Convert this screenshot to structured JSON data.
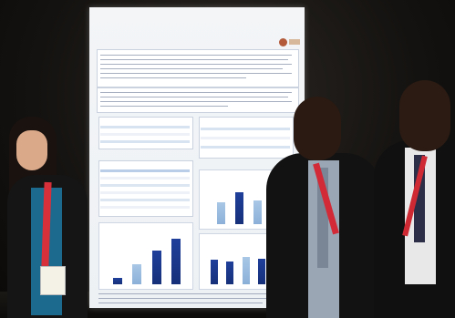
{
  "photo": {
    "scene": "photo",
    "colors": {
      "poster_title": "#2c4a86",
      "bar_dark": "#1f3f9a",
      "bar_light": "#9dbde0",
      "lanyard": "#d8303a",
      "backdrop": "#141210"
    },
    "chart_bars": {
      "chart_left_bottom": [
        0.15,
        0.45,
        0.75,
        1.0
      ],
      "chart_right_top": [
        0.55,
        0.8,
        0.6,
        0.9
      ],
      "chart_right_bottom": [
        0.7,
        0.65,
        0.8,
        0.75
      ]
    }
  }
}
